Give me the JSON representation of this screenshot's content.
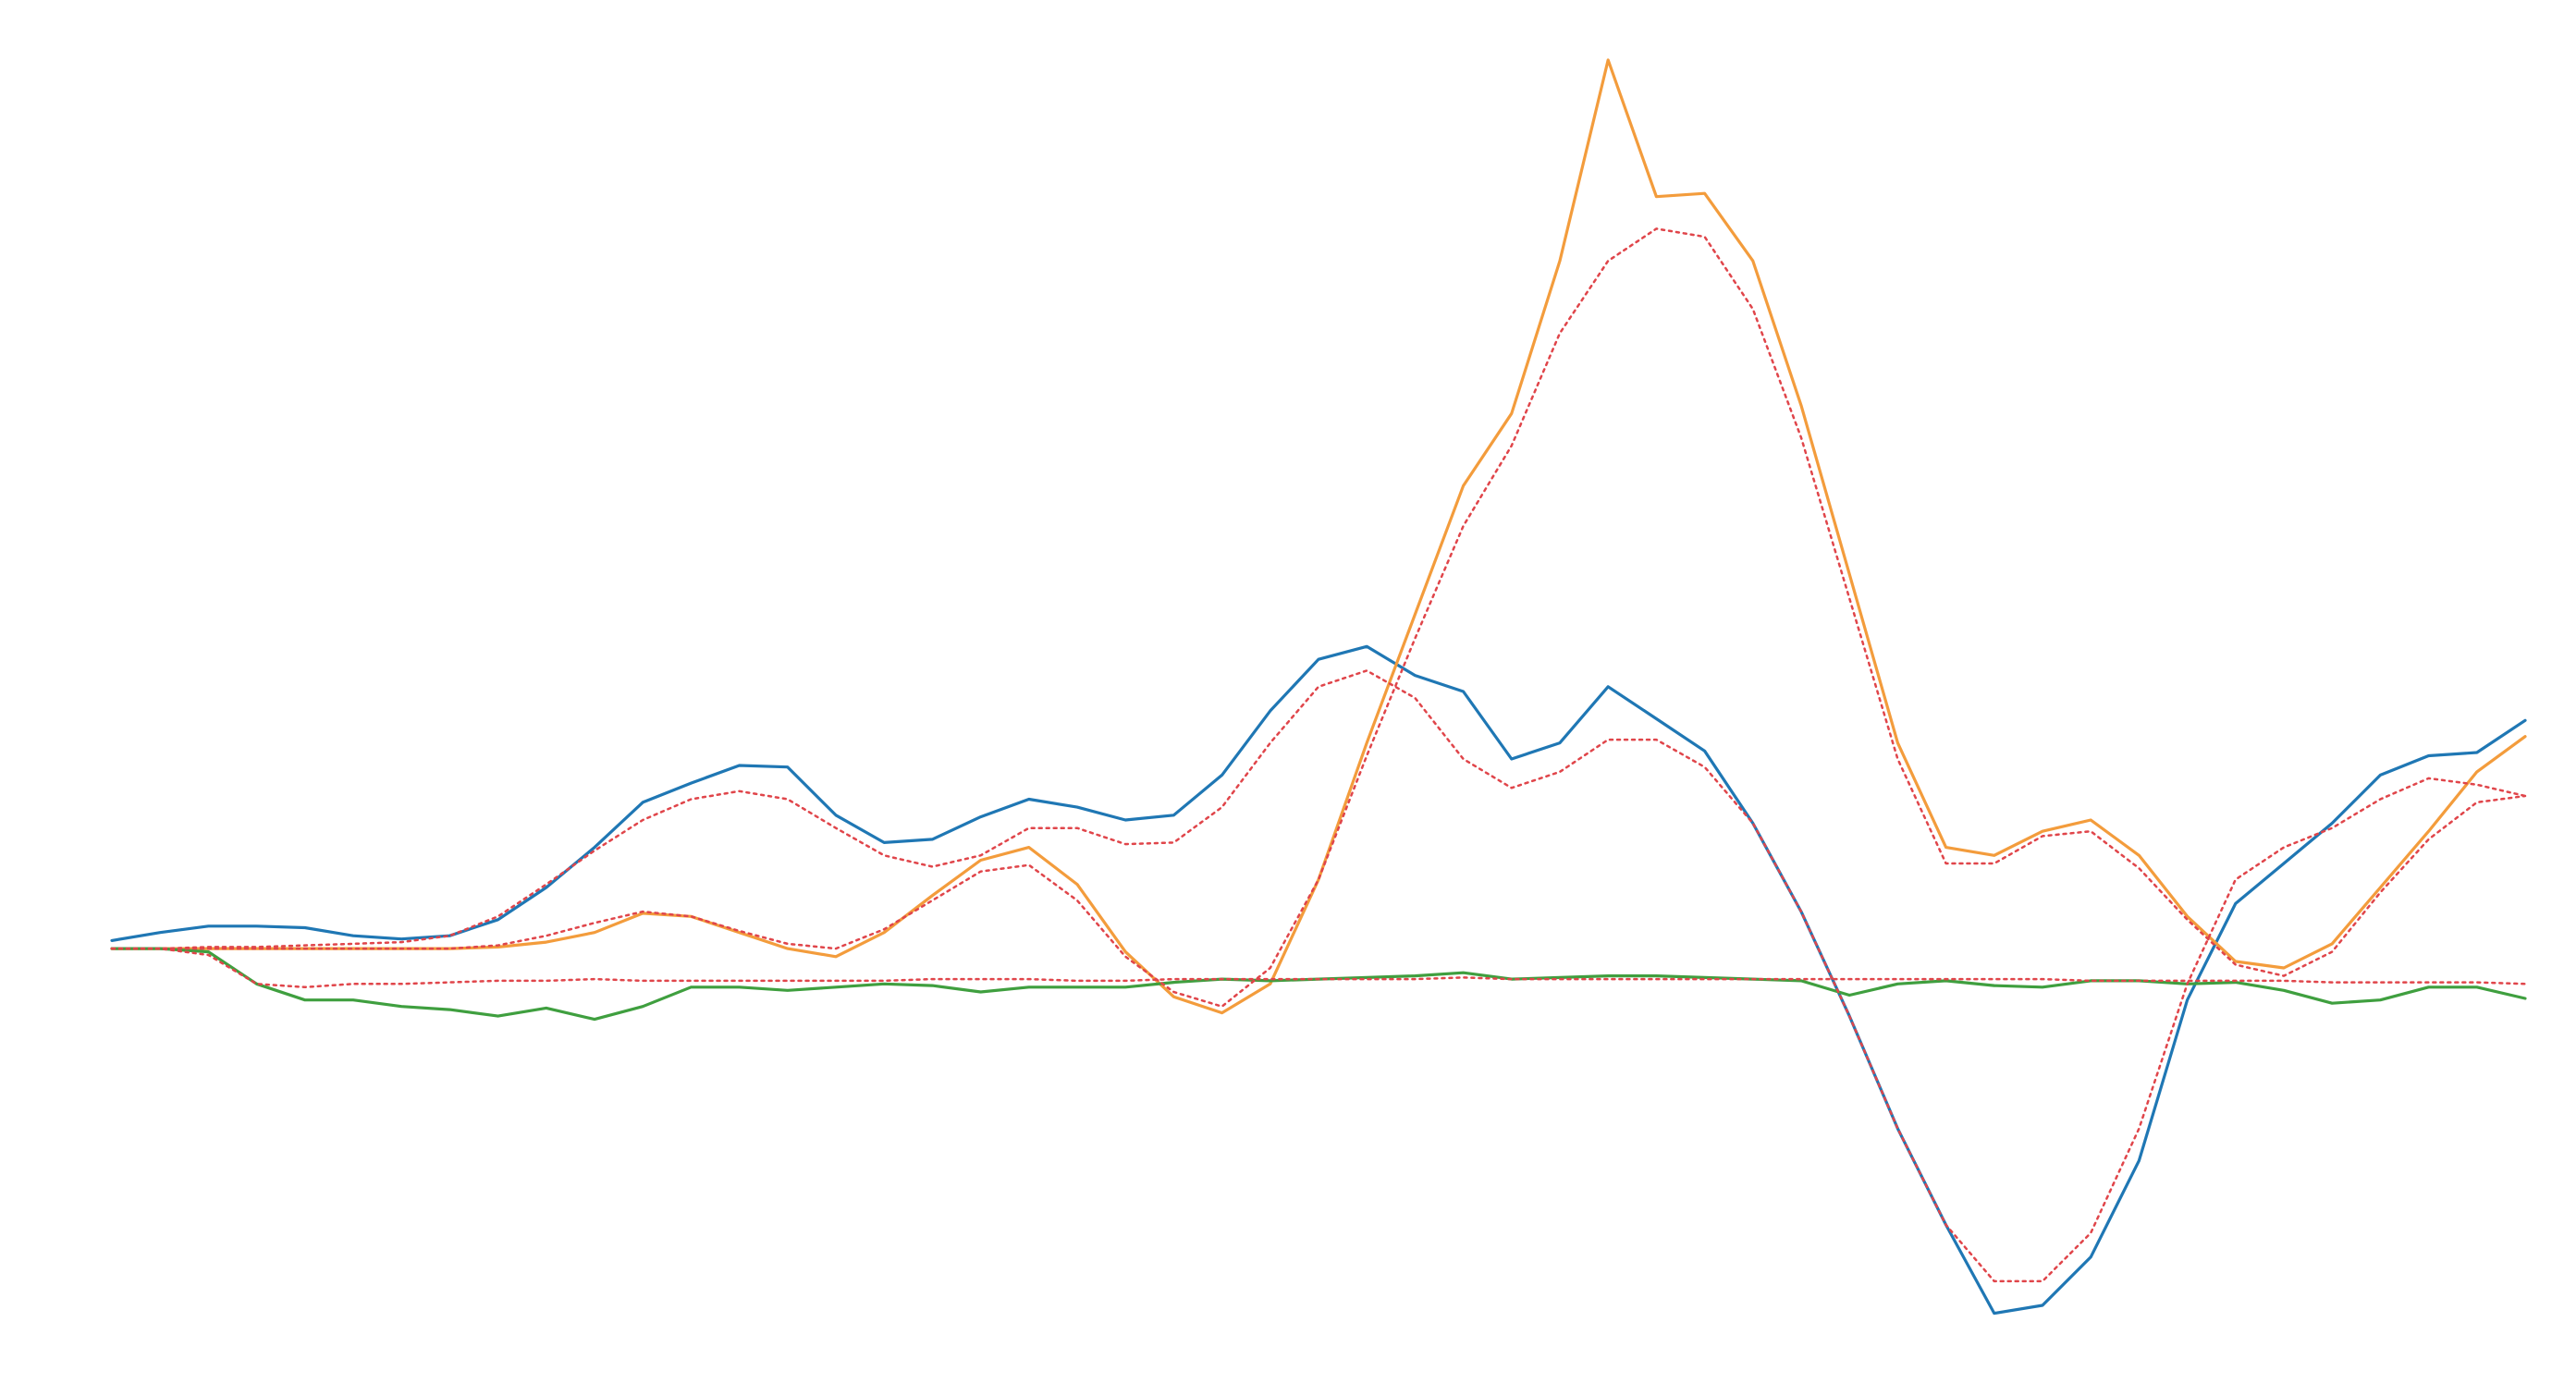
{
  "chart_data": {
    "type": "line",
    "x": [
      0,
      2,
      4,
      6,
      8,
      10,
      12,
      14,
      16,
      18,
      20,
      22,
      24,
      26,
      28,
      30,
      32,
      34,
      36,
      38,
      40,
      42,
      44,
      46,
      48,
      50,
      52,
      54,
      56,
      58,
      60,
      62,
      64,
      66,
      68,
      70,
      72,
      74,
      76,
      78,
      80,
      82,
      84,
      86,
      88,
      90,
      92,
      94,
      96,
      98,
      100
    ],
    "xlim": [
      0,
      100
    ],
    "ylim": [
      -26,
      58
    ],
    "grid": false,
    "series": [
      {
        "color": "#1f77b4",
        "dash": "solid",
        "values": [
          0.5,
          1.0,
          1.4,
          1.4,
          1.3,
          0.8,
          0.6,
          0.8,
          1.8,
          3.8,
          6.3,
          9.1,
          10.3,
          11.4,
          11.3,
          8.3,
          6.6,
          6.8,
          8.2,
          9.3,
          8.8,
          8.0,
          8.3,
          10.8,
          14.8,
          18.0,
          18.8,
          17.0,
          16.0,
          11.8,
          12.8,
          16.3,
          14.3,
          12.3,
          7.8,
          2.3,
          -4.2,
          -11.2,
          -17.2,
          -22.7,
          -22.2,
          -19.2,
          -13.2,
          -3.2,
          2.8,
          5.3,
          7.8,
          10.8,
          12.0,
          12.2,
          14.2
        ]
      },
      {
        "color": "#f39c3c",
        "dash": "solid",
        "values": [
          0,
          0,
          0,
          0,
          0,
          0,
          0,
          0,
          0.1,
          0.4,
          1.0,
          2.2,
          2.0,
          1.0,
          0,
          -0.5,
          1.0,
          3.3,
          5.5,
          6.3,
          4.0,
          -0.2,
          -3.0,
          -4.0,
          -2.2,
          4.3,
          12.8,
          20.8,
          28.8,
          33.3,
          42.8,
          55.3,
          46.8,
          47.0,
          42.8,
          33.8,
          23.3,
          12.8,
          6.3,
          5.8,
          7.3,
          8.0,
          5.8,
          2.0,
          -0.8,
          -1.2,
          0.3,
          3.8,
          7.3,
          11.0,
          13.2
        ]
      },
      {
        "color": "#3f9f3f",
        "dash": "solid",
        "values": [
          0,
          0,
          -0.2,
          -2.2,
          -3.2,
          -3.2,
          -3.6,
          -3.8,
          -4.2,
          -3.7,
          -4.4,
          -3.6,
          -2.4,
          -2.4,
          -2.6,
          -2.4,
          -2.2,
          -2.3,
          -2.7,
          -2.4,
          -2.4,
          -2.4,
          -2.1,
          -1.9,
          -2.0,
          -1.9,
          -1.8,
          -1.7,
          -1.5,
          -1.9,
          -1.8,
          -1.7,
          -1.7,
          -1.8,
          -1.9,
          -2.0,
          -2.9,
          -2.2,
          -2.0,
          -2.3,
          -2.4,
          -2.0,
          -2.0,
          -2.2,
          -2.1,
          -2.6,
          -3.4,
          -3.2,
          -2.4,
          -2.4,
          -3.1
        ]
      },
      {
        "color": "#e0454a",
        "dash": "dotted",
        "values": [
          0,
          0,
          0.1,
          0.1,
          0.2,
          0.3,
          0.4,
          0.8,
          2.0,
          4.0,
          6.1,
          8.0,
          9.3,
          9.8,
          9.3,
          7.5,
          5.8,
          5.1,
          5.8,
          7.5,
          7.5,
          6.5,
          6.6,
          8.8,
          12.8,
          16.3,
          17.3,
          15.6,
          11.8,
          10.0,
          11.0,
          13.0,
          13.0,
          11.3,
          7.8,
          2.3,
          -4.2,
          -11.2,
          -17.2,
          -20.7,
          -20.7,
          -17.7,
          -11.2,
          -2.2,
          4.3,
          6.3,
          7.5,
          9.3,
          10.6,
          10.2,
          9.5
        ]
      },
      {
        "color": "#e0454a",
        "dash": "dotted",
        "values": [
          0,
          0,
          0,
          0,
          0,
          0,
          0,
          0,
          0.2,
          0.8,
          1.6,
          2.3,
          2.0,
          1.1,
          0.3,
          0,
          1.2,
          3.0,
          4.8,
          5.2,
          3.0,
          -0.5,
          -2.7,
          -3.6,
          -1.2,
          4.3,
          12.0,
          19.3,
          26.3,
          31.3,
          38.3,
          42.8,
          44.8,
          44.3,
          39.8,
          31.8,
          21.8,
          11.8,
          5.3,
          5.3,
          7.0,
          7.3,
          5.0,
          1.8,
          -1.0,
          -1.7,
          -0.2,
          3.5,
          6.8,
          9.1,
          9.5
        ]
      },
      {
        "color": "#e0454a",
        "dash": "dotted",
        "values": [
          0,
          0,
          -0.4,
          -2.2,
          -2.4,
          -2.2,
          -2.2,
          -2.1,
          -2.0,
          -2.0,
          -1.9,
          -2.0,
          -2.0,
          -2.0,
          -2.0,
          -2.0,
          -2.0,
          -1.9,
          -1.9,
          -1.9,
          -2.0,
          -2.0,
          -1.9,
          -1.9,
          -1.9,
          -1.9,
          -1.9,
          -1.9,
          -1.8,
          -1.9,
          -1.9,
          -1.9,
          -1.9,
          -1.9,
          -1.9,
          -1.9,
          -1.9,
          -1.9,
          -1.9,
          -1.9,
          -1.9,
          -2.0,
          -2.0,
          -2.0,
          -2.0,
          -2.0,
          -2.1,
          -2.1,
          -2.1,
          -2.1,
          -2.2
        ]
      }
    ]
  }
}
